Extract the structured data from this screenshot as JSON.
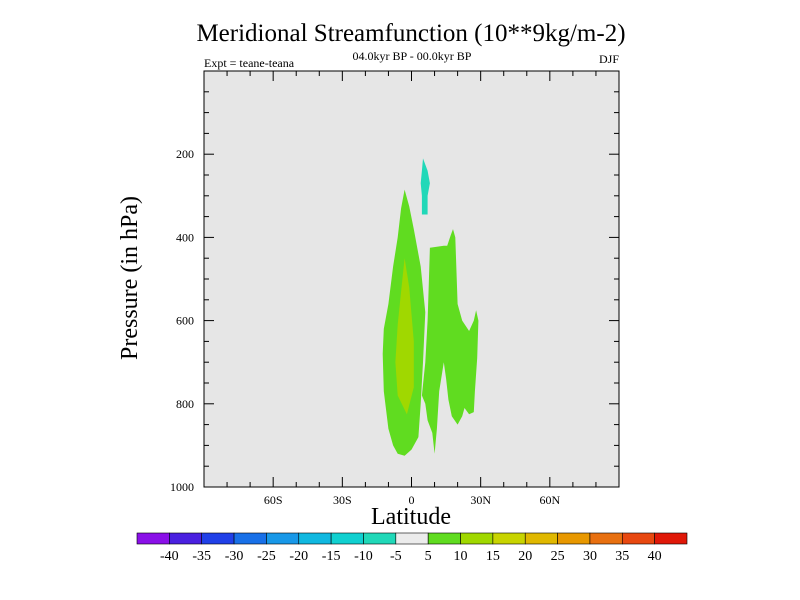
{
  "chart_data": {
    "type": "contour",
    "title": "Meridional Streamfunction (10**9kg/m-2)",
    "subtitle": "04.0kyr BP - 00.0kyr BP",
    "expt_label": "Expt = teane-teana",
    "season": "DJF",
    "xlabel": "Latitude",
    "ylabel": "Pressure (in hPa)",
    "xlim": [
      -90,
      90
    ],
    "ylim": [
      0,
      1000
    ],
    "y_reversed": true,
    "x_ticks": [
      {
        "value": -60,
        "label": "60S"
      },
      {
        "value": -30,
        "label": "30S"
      },
      {
        "value": 0,
        "label": "0"
      },
      {
        "value": 30,
        "label": "30N"
      },
      {
        "value": 60,
        "label": "60N"
      }
    ],
    "y_ticks": [
      {
        "value": 200,
        "label": "200"
      },
      {
        "value": 400,
        "label": "400"
      },
      {
        "value": 600,
        "label": "600"
      },
      {
        "value": 800,
        "label": "800"
      },
      {
        "value": 1000,
        "label": "1000"
      }
    ],
    "background_color": "#e6e6e6",
    "regions": [
      {
        "name": "positive-5-10-west-lobe",
        "level": "5 to 10",
        "color": "#60dc20",
        "points": [
          [
            -3,
            285
          ],
          [
            -1,
            325
          ],
          [
            1,
            380
          ],
          [
            4,
            470
          ],
          [
            6,
            580
          ],
          [
            5,
            700
          ],
          [
            4,
            800
          ],
          [
            3,
            880
          ],
          [
            0,
            910
          ],
          [
            -3,
            925
          ],
          [
            -6,
            920
          ],
          [
            -8,
            900
          ],
          [
            -10,
            860
          ],
          [
            -12,
            770
          ],
          [
            -12.5,
            680
          ],
          [
            -12,
            620
          ],
          [
            -10,
            560
          ],
          [
            -8,
            470
          ],
          [
            -6,
            400
          ],
          [
            -4.5,
            330
          ]
        ]
      },
      {
        "name": "positive-10-15-core",
        "level": "10 to 15",
        "color": "#a0d800",
        "points": [
          [
            -3,
            450
          ],
          [
            -1,
            520
          ],
          [
            1,
            650
          ],
          [
            1,
            760
          ],
          [
            -2,
            825
          ],
          [
            -6,
            780
          ],
          [
            -7,
            700
          ],
          [
            -6,
            610
          ],
          [
            -4.5,
            530
          ]
        ]
      },
      {
        "name": "positive-5-10-east-lobe",
        "level": "5 to 10",
        "color": "#60dc20",
        "points": [
          [
            8,
            425
          ],
          [
            14,
            420
          ],
          [
            15.5,
            420
          ],
          [
            17,
            395
          ],
          [
            18,
            380
          ],
          [
            19,
            400
          ],
          [
            20,
            560
          ],
          [
            22,
            600
          ],
          [
            25,
            625
          ],
          [
            27,
            600
          ],
          [
            28,
            575
          ],
          [
            29,
            600
          ],
          [
            28.5,
            690
          ],
          [
            27.5,
            770
          ],
          [
            27,
            820
          ],
          [
            25,
            825
          ],
          [
            23,
            810
          ],
          [
            22,
            830
          ],
          [
            20,
            850
          ],
          [
            17.5,
            830
          ],
          [
            16,
            790
          ],
          [
            15,
            740
          ],
          [
            14,
            700
          ],
          [
            12,
            770
          ],
          [
            11,
            860
          ],
          [
            10,
            920
          ],
          [
            9,
            870
          ],
          [
            7,
            840
          ],
          [
            6,
            800
          ],
          [
            4.5,
            780
          ],
          [
            6,
            700
          ],
          [
            7,
            600
          ],
          [
            7.5,
            510
          ]
        ]
      },
      {
        "name": "negative-5-10-upper-patch",
        "level": "-10 to -5",
        "color": "#20d8b8",
        "points": [
          [
            5,
            210
          ],
          [
            7,
            240
          ],
          [
            8,
            270
          ],
          [
            7,
            300
          ],
          [
            7,
            345
          ],
          [
            4.5,
            345
          ],
          [
            4.5,
            300
          ],
          [
            4,
            270
          ],
          [
            4.5,
            240
          ]
        ]
      }
    ],
    "colorbar": {
      "levels": [
        "-40",
        "-35",
        "-30",
        "-25",
        "-20",
        "-15",
        "-10",
        "-5",
        "5",
        "10",
        "15",
        "20",
        "25",
        "30",
        "35",
        "40"
      ],
      "colors": [
        "#8a10e8",
        "#4a20e0",
        "#2040e8",
        "#1870e8",
        "#1898e8",
        "#10b8e0",
        "#10d0d0",
        "#20d8b8",
        "#ececec",
        "#60dc20",
        "#a0d800",
        "#c8d400",
        "#e0b800",
        "#e89800",
        "#e87010",
        "#e84810",
        "#e01808"
      ]
    }
  }
}
